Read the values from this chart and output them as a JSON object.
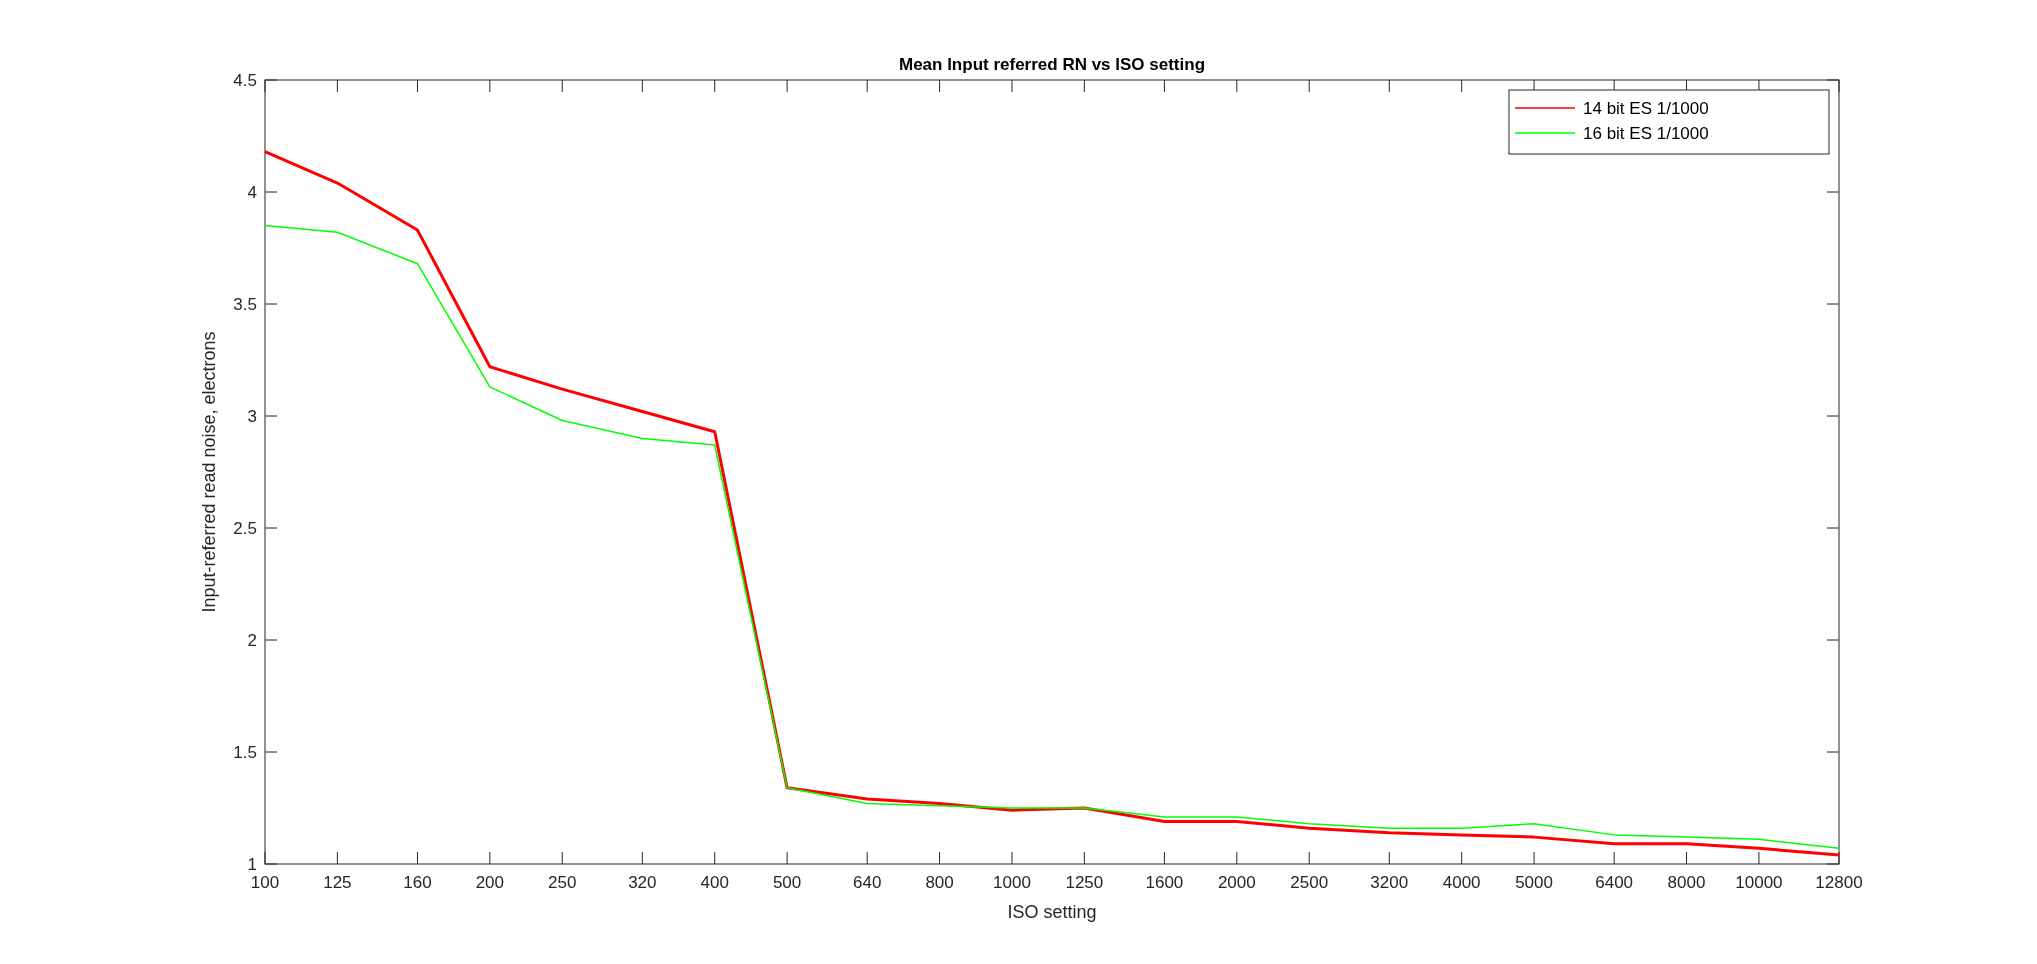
{
  "chart_data": {
    "type": "line",
    "title": "Mean Input referred RN vs ISO setting",
    "xlabel": "ISO setting",
    "ylabel": "Input-referred read noise, electrons",
    "log": "x",
    "x": [
      100,
      125,
      160,
      200,
      250,
      320,
      400,
      500,
      640,
      800,
      1000,
      1250,
      1600,
      2000,
      2500,
      3200,
      4000,
      5000,
      6400,
      8000,
      10000,
      12800
    ],
    "xlim": [
      100,
      12800
    ],
    "xticks": [
      100,
      125,
      160,
      200,
      250,
      320,
      400,
      500,
      640,
      800,
      1000,
      1250,
      1600,
      2000,
      2500,
      3200,
      4000,
      5000,
      6400,
      8000,
      10000,
      12800
    ],
    "ylim": [
      1,
      4.5
    ],
    "yticks": [
      1,
      1.5,
      2,
      2.5,
      3,
      3.5,
      4,
      4.5
    ],
    "grid": false,
    "legend": "top right",
    "marker": "none",
    "line_style": "solid",
    "series": [
      {
        "name": "14 bit ES 1/1000",
        "color": "#ff0000",
        "values": [
          4.18,
          4.04,
          3.83,
          3.22,
          3.12,
          3.02,
          2.93,
          1.34,
          1.29,
          1.27,
          1.24,
          1.25,
          1.19,
          1.19,
          1.16,
          1.14,
          1.13,
          1.12,
          1.09,
          1.09,
          1.07,
          1.04
        ]
      },
      {
        "name": "16 bit ES 1/1000",
        "color": "#00ff00",
        "values": [
          3.85,
          3.82,
          3.68,
          3.13,
          2.98,
          2.9,
          2.87,
          1.34,
          1.27,
          1.26,
          1.25,
          1.25,
          1.21,
          1.21,
          1.18,
          1.16,
          1.16,
          1.18,
          1.13,
          1.12,
          1.11,
          1.07
        ]
      }
    ]
  }
}
